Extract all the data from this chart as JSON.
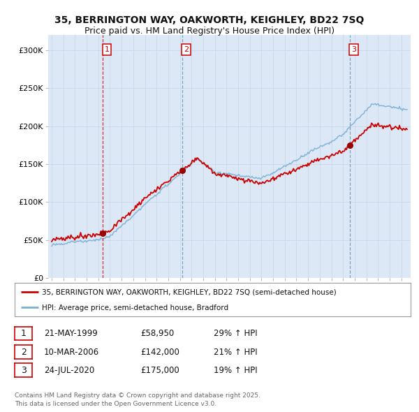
{
  "title_line1": "35, BERRINGTON WAY, OAKWORTH, KEIGHLEY, BD22 7SQ",
  "title_line2": "Price paid vs. HM Land Registry's House Price Index (HPI)",
  "ylim": [
    0,
    320000
  ],
  "yticks": [
    0,
    50000,
    100000,
    150000,
    200000,
    250000,
    300000
  ],
  "ytick_labels": [
    "£0",
    "£50K",
    "£100K",
    "£150K",
    "£200K",
    "£250K",
    "£300K"
  ],
  "xlim_left": 1994.7,
  "xlim_right": 2025.8,
  "sale_dates": [
    1999.38,
    2006.18,
    2020.56
  ],
  "sale_prices": [
    58950,
    142000,
    175000
  ],
  "sale_labels": [
    "1",
    "2",
    "3"
  ],
  "vline_styles": [
    "dashed_red",
    "dashed_blue",
    "dashed_blue"
  ],
  "legend_red": "35, BERRINGTON WAY, OAKWORTH, KEIGHLEY, BD22 7SQ (semi-detached house)",
  "legend_blue": "HPI: Average price, semi-detached house, Bradford",
  "table_rows": [
    [
      "1",
      "21-MAY-1999",
      "£58,950",
      "29% ↑ HPI"
    ],
    [
      "2",
      "10-MAR-2006",
      "£142,000",
      "21% ↑ HPI"
    ],
    [
      "3",
      "24-JUL-2020",
      "£175,000",
      "19% ↑ HPI"
    ]
  ],
  "footer": "Contains HM Land Registry data © Crown copyright and database right 2025.\nThis data is licensed under the Open Government Licence v3.0.",
  "red_color": "#cc0000",
  "blue_color": "#7ab0d4",
  "bg_color": "#ffffff",
  "plot_bg_color": "#dce8f5"
}
